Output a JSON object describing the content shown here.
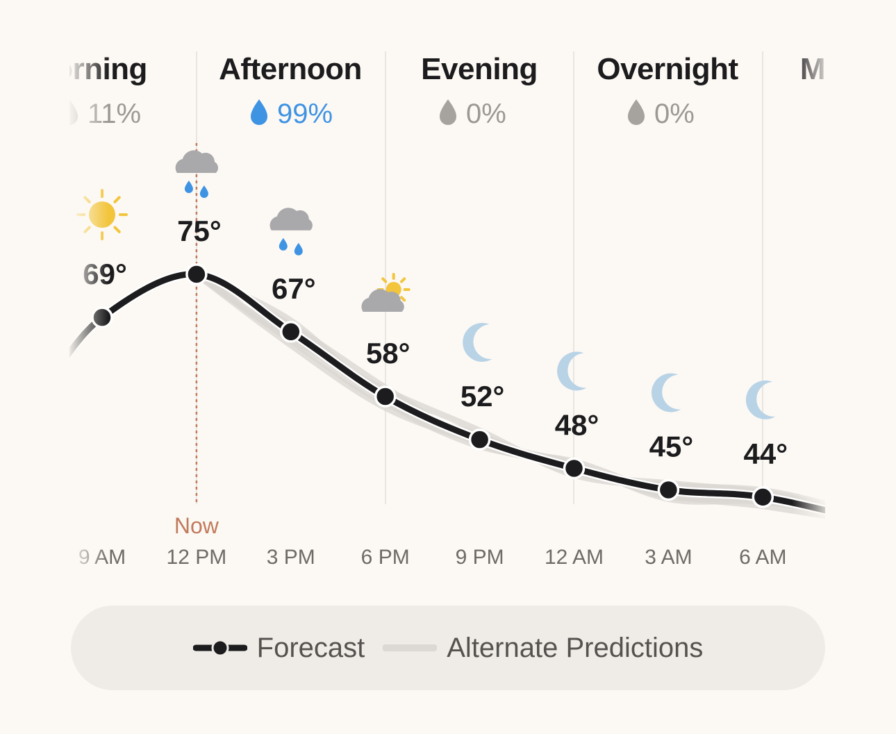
{
  "periods": [
    {
      "name": "orning",
      "precip": "11%",
      "active": false
    },
    {
      "name": "Afternoon",
      "precip": "99%",
      "active": true
    },
    {
      "name": "Evening",
      "precip": "0%",
      "active": false
    },
    {
      "name": "Overnight",
      "precip": "0%",
      "active": false
    },
    {
      "name": "M",
      "precip": "",
      "active": false
    }
  ],
  "now_label": "Now",
  "chart_data": {
    "type": "line",
    "title": "",
    "xlabel": "",
    "ylabel": "",
    "x": [
      "9 AM",
      "12 PM",
      "3 PM",
      "6 PM",
      "9 PM",
      "12 AM",
      "3 AM",
      "6 AM"
    ],
    "series": [
      {
        "name": "Forecast",
        "values": [
          69,
          75,
          67,
          58,
          52,
          48,
          45,
          44
        ]
      }
    ],
    "temp_labels": [
      "69°",
      "75°",
      "67°",
      "58°",
      "52°",
      "48°",
      "45°",
      "44°"
    ],
    "conditions": [
      "sun-icon",
      "rain-cloud-icon",
      "rain-cloud-icon",
      "partly-cloudy-icon",
      "moon-icon",
      "moon-icon",
      "moon-icon",
      "moon-icon"
    ],
    "now_index": 1,
    "legend_placement": "bottom"
  },
  "legend": {
    "forecast_label": "Forecast",
    "alternate_label": "Alternate Predictions"
  },
  "colors": {
    "background": "#fcf9f4",
    "forecast_line": "#1c1b1d",
    "alternate_line": "#d9d6d2",
    "precip_active": "#3f93e3",
    "now_marker": "#c17a5c",
    "sun": "#f2c53d",
    "moon": "#b9d3e6",
    "cloud": "#a9a8ab"
  }
}
